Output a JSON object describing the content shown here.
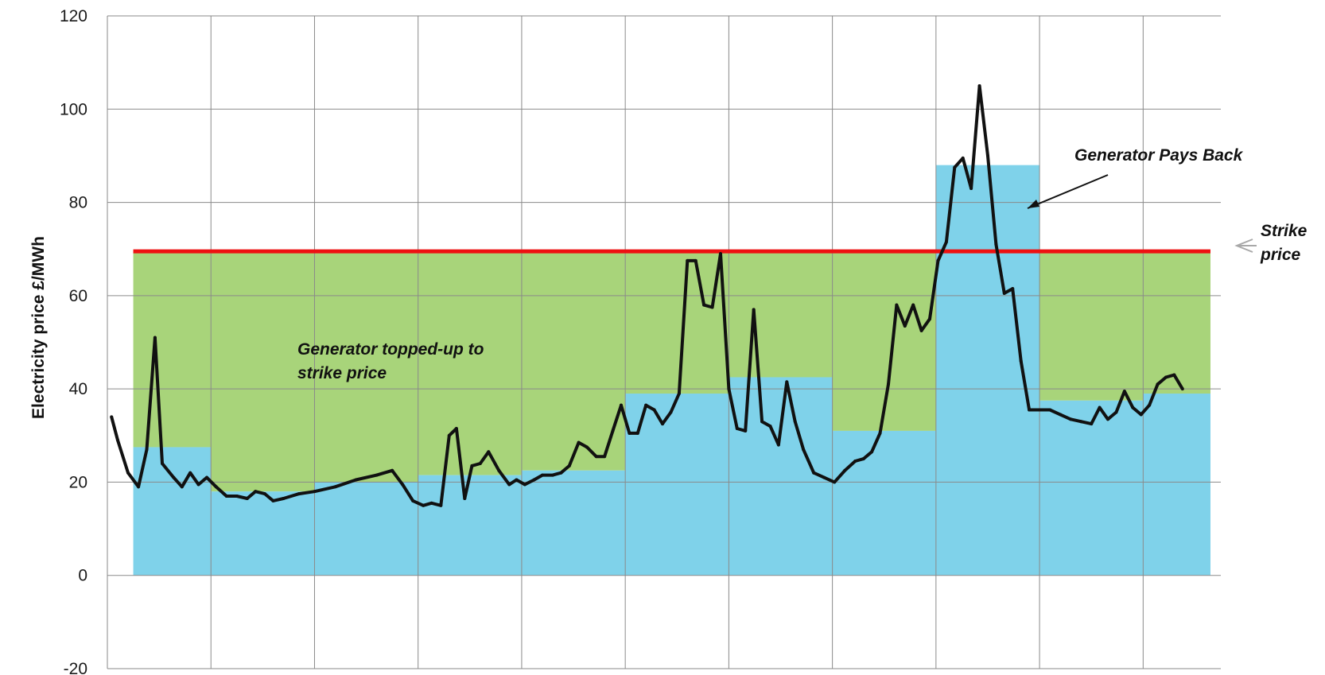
{
  "chart_data": {
    "type": "area",
    "xlabel": "",
    "ylabel": "Electricity price £/MWh",
    "ylim": [
      -20,
      120
    ],
    "yticks": [
      -20,
      0,
      20,
      40,
      60,
      80,
      100,
      120
    ],
    "grid": true,
    "x_range": [
      0,
      10.75
    ],
    "strike_price": 69.5,
    "series": [
      {
        "role": "reference_price_steps",
        "segments": [
          {
            "x0": 0.25,
            "x1": 1.0,
            "value": 27.5
          },
          {
            "x0": 1.0,
            "x1": 2.0,
            "value": 18.0
          },
          {
            "x0": 2.0,
            "x1": 3.0,
            "value": 20.0
          },
          {
            "x0": 3.0,
            "x1": 4.0,
            "value": 21.5
          },
          {
            "x0": 4.0,
            "x1": 5.0,
            "value": 22.5
          },
          {
            "x0": 5.0,
            "x1": 6.0,
            "value": 39.0
          },
          {
            "x0": 6.0,
            "x1": 7.0,
            "value": 42.5
          },
          {
            "x0": 7.0,
            "x1": 8.0,
            "value": 31.0
          },
          {
            "x0": 8.0,
            "x1": 9.0,
            "value": 88.0
          },
          {
            "x0": 9.0,
            "x1": 10.0,
            "value": 37.5
          },
          {
            "x0": 10.0,
            "x1": 10.65,
            "value": 39.0
          }
        ]
      },
      {
        "role": "market_price",
        "points": [
          [
            0.04,
            34
          ],
          [
            0.1,
            29
          ],
          [
            0.2,
            22
          ],
          [
            0.3,
            19
          ],
          [
            0.38,
            27
          ],
          [
            0.46,
            51
          ],
          [
            0.53,
            24
          ],
          [
            0.64,
            21
          ],
          [
            0.72,
            19
          ],
          [
            0.8,
            22
          ],
          [
            0.88,
            19.5
          ],
          [
            0.96,
            21
          ],
          [
            1.05,
            19
          ],
          [
            1.15,
            17
          ],
          [
            1.25,
            17
          ],
          [
            1.35,
            16.5
          ],
          [
            1.43,
            18
          ],
          [
            1.52,
            17.5
          ],
          [
            1.6,
            16
          ],
          [
            1.7,
            16.5
          ],
          [
            1.85,
            17.5
          ],
          [
            2.0,
            18
          ],
          [
            2.2,
            19
          ],
          [
            2.4,
            20.5
          ],
          [
            2.6,
            21.5
          ],
          [
            2.75,
            22.5
          ],
          [
            2.85,
            19.5
          ],
          [
            2.95,
            16
          ],
          [
            3.05,
            15
          ],
          [
            3.13,
            15.5
          ],
          [
            3.22,
            15
          ],
          [
            3.3,
            30
          ],
          [
            3.37,
            31.5
          ],
          [
            3.45,
            16.5
          ],
          [
            3.52,
            23.5
          ],
          [
            3.6,
            24
          ],
          [
            3.68,
            26.5
          ],
          [
            3.78,
            22.5
          ],
          [
            3.88,
            19.5
          ],
          [
            3.95,
            20.5
          ],
          [
            4.03,
            19.5
          ],
          [
            4.12,
            20.5
          ],
          [
            4.2,
            21.5
          ],
          [
            4.3,
            21.5
          ],
          [
            4.38,
            22
          ],
          [
            4.46,
            23.5
          ],
          [
            4.55,
            28.5
          ],
          [
            4.63,
            27.5
          ],
          [
            4.72,
            25.5
          ],
          [
            4.8,
            25.5
          ],
          [
            4.88,
            31
          ],
          [
            4.96,
            36.5
          ],
          [
            5.04,
            30.5
          ],
          [
            5.12,
            30.5
          ],
          [
            5.2,
            36.5
          ],
          [
            5.28,
            35.5
          ],
          [
            5.36,
            32.5
          ],
          [
            5.44,
            35
          ],
          [
            5.52,
            39
          ],
          [
            5.6,
            67.5
          ],
          [
            5.68,
            67.5
          ],
          [
            5.76,
            58
          ],
          [
            5.84,
            57.5
          ],
          [
            5.92,
            69
          ],
          [
            6.0,
            40
          ],
          [
            6.08,
            31.5
          ],
          [
            6.16,
            31
          ],
          [
            6.24,
            57
          ],
          [
            6.32,
            33
          ],
          [
            6.4,
            32
          ],
          [
            6.48,
            28
          ],
          [
            6.56,
            41.5
          ],
          [
            6.64,
            33
          ],
          [
            6.72,
            27
          ],
          [
            6.82,
            22
          ],
          [
            6.92,
            21
          ],
          [
            7.02,
            20
          ],
          [
            7.12,
            22.5
          ],
          [
            7.22,
            24.5
          ],
          [
            7.3,
            25
          ],
          [
            7.38,
            26.5
          ],
          [
            7.46,
            30.5
          ],
          [
            7.54,
            41
          ],
          [
            7.62,
            58
          ],
          [
            7.7,
            53.5
          ],
          [
            7.78,
            58
          ],
          [
            7.86,
            52.5
          ],
          [
            7.94,
            55
          ],
          [
            8.02,
            67.5
          ],
          [
            8.1,
            71.5
          ],
          [
            8.18,
            87.5
          ],
          [
            8.26,
            89.5
          ],
          [
            8.34,
            83
          ],
          [
            8.42,
            105
          ],
          [
            8.5,
            90
          ],
          [
            8.58,
            71
          ],
          [
            8.66,
            60.5
          ],
          [
            8.74,
            61.5
          ],
          [
            8.82,
            46
          ],
          [
            8.9,
            35.5
          ],
          [
            9.0,
            35.5
          ],
          [
            9.1,
            35.5
          ],
          [
            9.2,
            34.5
          ],
          [
            9.3,
            33.5
          ],
          [
            9.4,
            33
          ],
          [
            9.5,
            32.5
          ],
          [
            9.58,
            36
          ],
          [
            9.66,
            33.5
          ],
          [
            9.74,
            35
          ],
          [
            9.82,
            39.5
          ],
          [
            9.9,
            36
          ],
          [
            9.98,
            34.5
          ],
          [
            10.06,
            36.5
          ],
          [
            10.14,
            41
          ],
          [
            10.22,
            42.5
          ],
          [
            10.3,
            43
          ],
          [
            10.38,
            40
          ]
        ]
      }
    ],
    "annotations": {
      "topped_up_line1": "Generator topped-up to",
      "topped_up_line2": "strike price",
      "pays_back": "Generator Pays Back",
      "strike_line1": "Strike",
      "strike_line2": "price"
    },
    "colors": {
      "topped_up_fill": "#a8d47a",
      "reference_fill": "#7fd2ea",
      "strike_line": "#ee1111",
      "price_line": "#111111",
      "grid": "#8a8a8a",
      "strike_arrow": "#a8a8a8"
    }
  }
}
